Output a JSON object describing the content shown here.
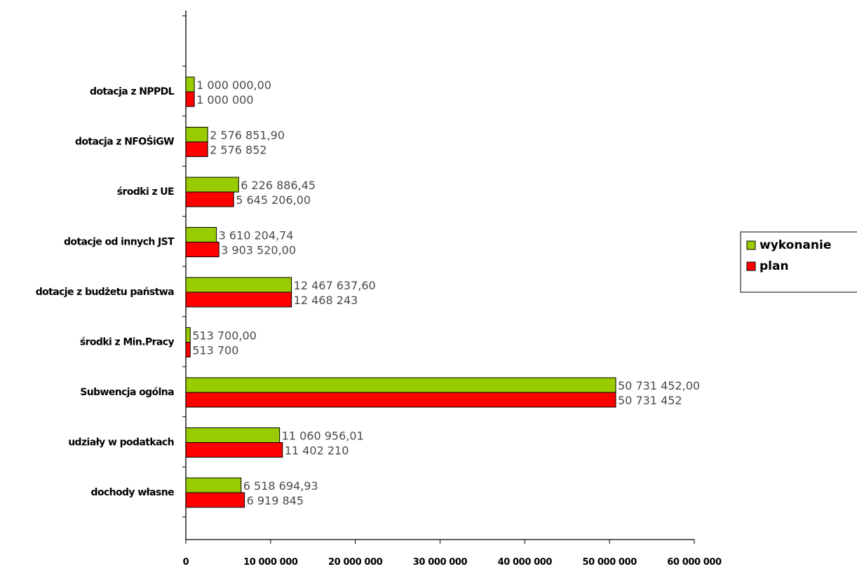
{
  "chart_data": {
    "type": "bar",
    "orientation": "horizontal",
    "categories": [
      "dotacja z NPPDL",
      "dotacja z NFOŚiGW",
      "środki z UE",
      "dotacje od innych JST",
      "dotacje z budżetu państwa",
      "środki z Min.Pracy",
      "Subwencja ogólna",
      "udziały w podatkach",
      "dochody własne"
    ],
    "series": [
      {
        "name": "wykonanie",
        "color": "#99cc00",
        "values": [
          1000000.0,
          2576851.9,
          6226886.45,
          3610204.74,
          12467637.6,
          513700.0,
          50731452.0,
          11060956.01,
          6518694.93
        ],
        "labels": [
          "1 000 000,00",
          "2 576 851,90",
          "6 226 886,45",
          "3 610 204,74",
          "12 467 637,60",
          "513 700,00",
          "50 731 452,00",
          "11 060 956,01",
          "6 518 694,93"
        ]
      },
      {
        "name": "plan",
        "color": "#ff0000",
        "values": [
          1000000,
          2576852,
          5645206.0,
          3903520.0,
          12468243,
          513700,
          50731452,
          11402210,
          6919845
        ],
        "labels": [
          "1 000 000",
          "2 576 852",
          "5 645 206,00",
          "3 903 520,00",
          "12 468 243",
          "513 700",
          "50 731 452",
          "11 402 210",
          "6 919 845"
        ]
      }
    ],
    "x_ticks": [
      0,
      10000000,
      20000000,
      30000000,
      40000000,
      50000000,
      60000000
    ],
    "x_tick_labels": [
      "0",
      "10 000 000",
      "20 000 000",
      "30 000 000",
      "40 000 000",
      "50 000 000",
      "60 000 000"
    ],
    "xlim": [
      0,
      60000000
    ],
    "legend": {
      "position": "right",
      "items": [
        {
          "label": "wykonanie",
          "color": "#99cc00"
        },
        {
          "label": "plan",
          "color": "#ff0000"
        }
      ]
    },
    "grid": false
  }
}
